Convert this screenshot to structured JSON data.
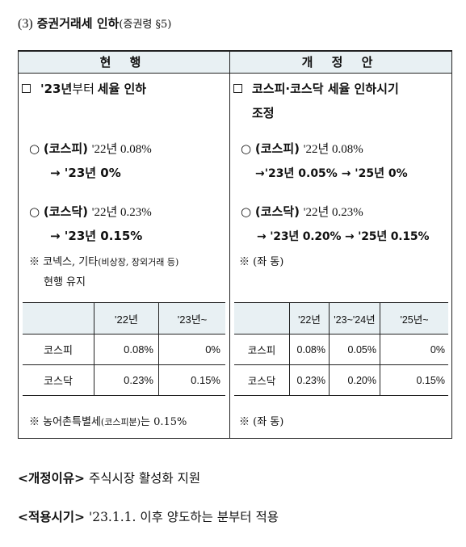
{
  "title": {
    "number": "(3)",
    "main": "증권거래세 인하",
    "ref": "(증권령 §5)"
  },
  "headers": {
    "current": "현 행",
    "revised": "개 정 안"
  },
  "current": {
    "heading_year": "'23년",
    "heading_mid": "부터 ",
    "heading_rest": "세율 인하",
    "kospi_label": "(코스피)",
    "kospi_rate": "'22년 0.08%",
    "kospi_next": "→ '23년  0%",
    "kosdaq_label": "(코스닥)",
    "kosdaq_rate": "'22년 0.23%",
    "kosdaq_next": "→ '23년  0.15%",
    "note_prefix": "※ 코넥스, 기타",
    "note_paren": "(비상장, 장외거래 등)",
    "note_line2": "현행 유지",
    "table": {
      "headers": [
        "",
        "'22년",
        "'23년~"
      ],
      "rows": [
        [
          "코스피",
          "0.08%",
          "0%"
        ],
        [
          "코스닥",
          "0.23%",
          "0.15%"
        ]
      ]
    },
    "footnote_prefix": "※ 농어촌특별세",
    "footnote_paren": "(코스피분)",
    "footnote_suffix": "는 0.15%"
  },
  "revised": {
    "heading_line1": "코스피·코스닥 세율 인하시기",
    "heading_line2": "조정",
    "kospi_label": "(코스피)",
    "kospi_rate": "'22년 0.08%",
    "kospi_next": "→'23년 0.05% → '25년 0%",
    "kosdaq_label": "(코스닥)",
    "kosdaq_rate": "'22년 0.23%",
    "kosdaq_next": "→ '23년 0.20% → '25년 0.15%",
    "note": "※ (좌 동)",
    "table": {
      "headers": [
        "",
        "'22년",
        "'23~'24년",
        "'25년~"
      ],
      "rows": [
        [
          "코스피",
          "0.08%",
          "0.05%",
          "0%"
        ],
        [
          "코스닥",
          "0.23%",
          "0.20%",
          "0.15%"
        ]
      ]
    },
    "footnote": "※ (좌 동)"
  },
  "reason": {
    "label": "<개정이유>",
    "text": " 주식시장 활성화 지원"
  },
  "effective": {
    "label": "<적용시기>",
    "text": " '23.1.1. 이후 양도하는 분부터 적용"
  }
}
